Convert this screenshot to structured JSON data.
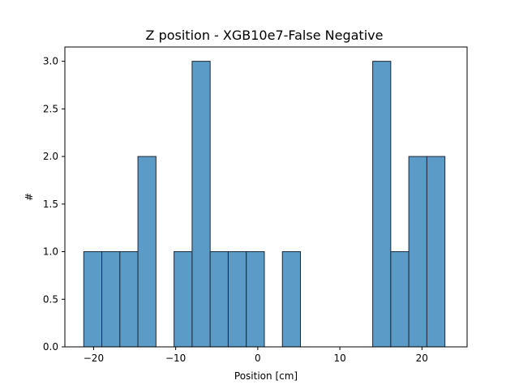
{
  "chart_data": {
    "type": "bar",
    "title": "Z position - XGB10e7-False Negative",
    "xlabel": "Position [cm]",
    "ylabel": "#",
    "xlim": [
      -23.5,
      25.5
    ],
    "ylim": [
      0,
      3.15
    ],
    "grid": false,
    "bar_color": "#5b9bc8",
    "edge_color": "#1f2a36",
    "bins": [
      {
        "x0": -21.2,
        "x1": -19.0,
        "value": 1
      },
      {
        "x0": -19.0,
        "x1": -16.8,
        "value": 1
      },
      {
        "x0": -16.8,
        "x1": -14.6,
        "value": 1
      },
      {
        "x0": -14.6,
        "x1": -12.4,
        "value": 2
      },
      {
        "x0": -12.4,
        "x1": -10.2,
        "value": 0
      },
      {
        "x0": -10.2,
        "x1": -8.0,
        "value": 1
      },
      {
        "x0": -8.0,
        "x1": -5.8,
        "value": 3
      },
      {
        "x0": -5.8,
        "x1": -3.6,
        "value": 1
      },
      {
        "x0": -3.6,
        "x1": -1.4,
        "value": 1
      },
      {
        "x0": -1.4,
        "x1": 0.8,
        "value": 1
      },
      {
        "x0": 0.8,
        "x1": 3.0,
        "value": 0
      },
      {
        "x0": 3.0,
        "x1": 5.2,
        "value": 1
      },
      {
        "x0": 5.2,
        "x1": 7.4,
        "value": 0
      },
      {
        "x0": 7.4,
        "x1": 9.6,
        "value": 0
      },
      {
        "x0": 9.6,
        "x1": 11.8,
        "value": 0
      },
      {
        "x0": 11.8,
        "x1": 14.0,
        "value": 0
      },
      {
        "x0": 14.0,
        "x1": 16.2,
        "value": 3
      },
      {
        "x0": 16.2,
        "x1": 18.4,
        "value": 1
      },
      {
        "x0": 18.4,
        "x1": 20.6,
        "value": 2
      },
      {
        "x0": 20.6,
        "x1": 22.8,
        "value": 2
      }
    ],
    "xticks": [
      {
        "value": -20,
        "label": "−20"
      },
      {
        "value": -10,
        "label": "−10"
      },
      {
        "value": 0,
        "label": "0"
      },
      {
        "value": 10,
        "label": "10"
      },
      {
        "value": 20,
        "label": "20"
      }
    ],
    "yticks": [
      {
        "value": 0.0,
        "label": "0.0"
      },
      {
        "value": 0.5,
        "label": "0.5"
      },
      {
        "value": 1.0,
        "label": "1.0"
      },
      {
        "value": 1.5,
        "label": "1.5"
      },
      {
        "value": 2.0,
        "label": "2.0"
      },
      {
        "value": 2.5,
        "label": "2.5"
      },
      {
        "value": 3.0,
        "label": "3.0"
      }
    ]
  }
}
